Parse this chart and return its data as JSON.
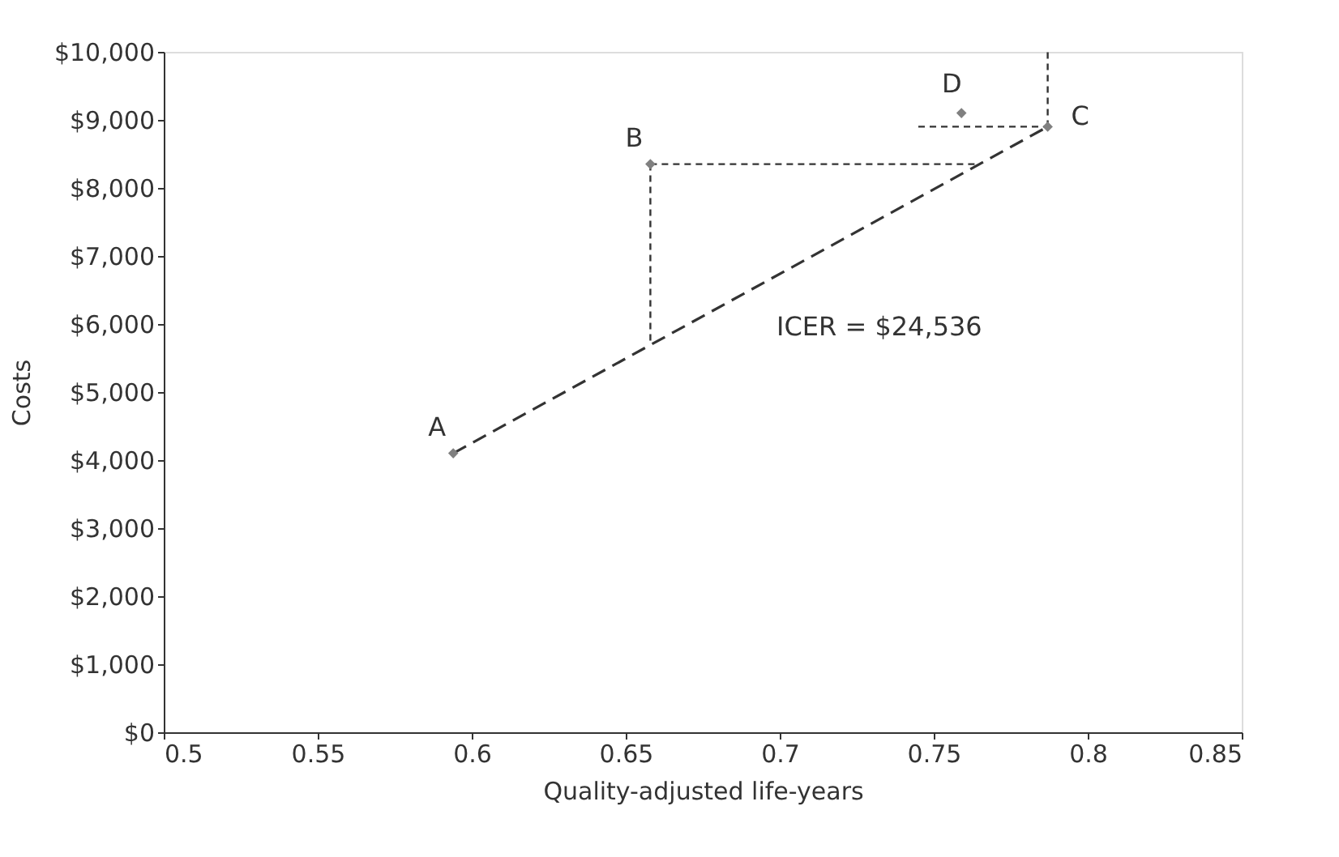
{
  "chart_data": {
    "type": "scatter",
    "xlabel": "Quality-adjusted life-years",
    "ylabel": "Costs",
    "xlim": [
      0.5,
      0.85
    ],
    "xticks": [
      0.5,
      0.55,
      0.6,
      0.65,
      0.7,
      0.75,
      0.8,
      0.85
    ],
    "ylim": [
      0,
      10000
    ],
    "yticks": [
      {
        "value": 0,
        "label": "$0"
      },
      {
        "value": 1000,
        "label": "$1,000"
      },
      {
        "value": 2000,
        "label": "$2,000"
      },
      {
        "value": 3000,
        "label": "$3,000"
      },
      {
        "value": 4000,
        "label": "$4,000"
      },
      {
        "value": 5000,
        "label": "$5,000"
      },
      {
        "value": 6000,
        "label": "$6,000"
      },
      {
        "value": 7000,
        "label": "$7,000"
      },
      {
        "value": 8000,
        "label": "$8,000"
      },
      {
        "value": 9000,
        "label": "$9,000"
      },
      {
        "value": 10000,
        "label": "$10,000"
      }
    ],
    "grid": false,
    "series": [
      {
        "type": "line",
        "color": "#333333",
        "line_style": "dashed",
        "x": [
          0.594,
          0.787
        ],
        "values": [
          4100,
          8900
        ]
      },
      {
        "type": "line",
        "color": "#333333",
        "line_style": "dotted",
        "x": [
          0.658,
          0.765
        ],
        "values": [
          8350,
          8350
        ]
      },
      {
        "type": "line",
        "color": "#333333",
        "line_style": "dotted",
        "x": [
          0.658,
          0.658
        ],
        "values": [
          8350,
          5700
        ]
      },
      {
        "type": "line",
        "color": "#333333",
        "line_style": "dotted",
        "x": [
          0.745,
          0.787
        ],
        "values": [
          8900,
          8900
        ]
      },
      {
        "type": "line",
        "color": "#333333",
        "line_style": "dotted",
        "x": [
          0.787,
          0.787
        ],
        "values": [
          8900,
          10000
        ]
      },
      {
        "color": "#808080",
        "marker": "diamond",
        "x": [
          0.594,
          0.658,
          0.787,
          0.759
        ],
        "values": [
          4100,
          8350,
          8900,
          9100
        ],
        "value_labels": [
          "A",
          "B",
          "C",
          "D"
        ]
      }
    ],
    "annotations": [
      "ICER = $24,536"
    ]
  }
}
